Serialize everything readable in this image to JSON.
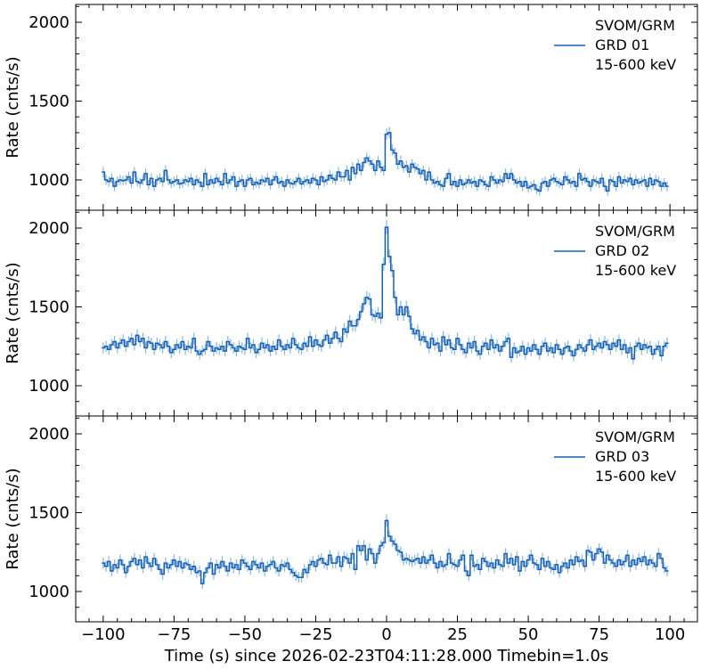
{
  "chart_data": {
    "type": "line",
    "style": "step-histogram-with-errorbars",
    "xlabel": "Time (s) since 2026-02-23T04:11:28.000 Timebin=1.0s",
    "ylabel": "Rate (cnts/s)",
    "xlim": [
      -109.7,
      109.7
    ],
    "ylim": [
      808,
      2113
    ],
    "xticks": [
      -100,
      -75,
      -50,
      -25,
      0,
      25,
      50,
      75,
      100
    ],
    "xtick_labels": [
      "−100",
      "−75",
      "−50",
      "−25",
      "0",
      "25",
      "50",
      "75",
      "100"
    ],
    "yticks": [
      1000,
      1500,
      2000
    ],
    "ytick_labels": [
      "1000",
      "1500",
      "2000"
    ],
    "x_start": -100,
    "bin_width": 1.0,
    "line_color": "#1660b0",
    "errorbar_color": "#8ab6e4",
    "legend_placement": "top-right",
    "panels": [
      {
        "legend": [
          "SVOM/GRM",
          "GRD 01",
          "15-600 keV"
        ],
        "values": [
          1050,
          1000,
          990,
          1010,
          960,
          990,
          1000,
          995,
          1000,
          1020,
          980,
          1050,
          990,
          980,
          1000,
          1040,
          970,
          1010,
          960,
          1000,
          1010,
          990,
          1060,
          1000,
          980,
          990,
          1000,
          975,
          980,
          1000,
          990,
          1010,
          970,
          1000,
          985,
          960,
          1040,
          970,
          1000,
          980,
          1010,
          990,
          970,
          1040,
          980,
          1000,
          1020,
          960,
          990,
          1000,
          960,
          1000,
          1010,
          970,
          985,
          975,
          1000,
          990,
          1010,
          970,
          1000,
          1020,
          980,
          990,
          960,
          1000,
          980,
          975,
          990,
          1010,
          975,
          990,
          1000,
          980,
          1010,
          1000,
          970,
          1020,
          990,
          1000,
          1030,
          1010,
          1000,
          1050,
          1020,
          1020,
          1060,
          1000,
          1080,
          1040,
          1100,
          1060,
          1110,
          1140,
          1120,
          1100,
          1060,
          1120,
          1080,
          1060,
          1290,
          1300,
          1190,
          1170,
          1100,
          1120,
          1080,
          1090,
          1050,
          1100,
          1080,
          1070,
          1040,
          1060,
          1000,
          1050,
          1000,
          980,
          990,
          970,
          960,
          1010,
          1040,
          970,
          990,
          960,
          1000,
          970,
          980,
          1000,
          980,
          990,
          960,
          1000,
          990,
          970,
          960,
          1020,
          1000,
          980,
          1000,
          990,
          1040,
          1010,
          1040,
          1000,
          980,
          990,
          960,
          990,
          950,
          960,
          970,
          940,
          930,
          980,
          990,
          960,
          1000,
          1010,
          990,
          980,
          970,
          1020,
          1000,
          980,
          990,
          960,
          1040,
          1000,
          1010,
          990,
          960,
          1000,
          990,
          980,
          1010,
          960,
          930,
          1000,
          990,
          960,
          1020,
          980,
          1000,
          990,
          1010,
          970,
          1000,
          980,
          990,
          1000,
          960,
          1010,
          970,
          1000,
          990,
          960,
          980,
          960
        ]
      },
      {
        "legend": [
          "SVOM/GRM",
          "GRD 02",
          "15-600 keV"
        ],
        "values": [
          1240,
          1250,
          1230,
          1260,
          1280,
          1240,
          1270,
          1290,
          1250,
          1280,
          1300,
          1260,
          1320,
          1280,
          1300,
          1240,
          1280,
          1270,
          1230,
          1270,
          1260,
          1240,
          1280,
          1250,
          1210,
          1230,
          1260,
          1240,
          1280,
          1230,
          1250,
          1240,
          1300,
          1220,
          1200,
          1220,
          1230,
          1280,
          1250,
          1220,
          1240,
          1230,
          1250,
          1220,
          1280,
          1260,
          1240,
          1220,
          1250,
          1240,
          1230,
          1300,
          1240,
          1260,
          1210,
          1230,
          1270,
          1240,
          1260,
          1220,
          1250,
          1230,
          1290,
          1250,
          1230,
          1260,
          1240,
          1300,
          1260,
          1240,
          1230,
          1270,
          1250,
          1310,
          1250,
          1290,
          1260,
          1250,
          1290,
          1320,
          1270,
          1300,
          1340,
          1300,
          1280,
          1360,
          1340,
          1410,
          1380,
          1380,
          1420,
          1470,
          1520,
          1560,
          1550,
          1450,
          1440,
          1460,
          1430,
          1770,
          2005,
          1820,
          1730,
          1560,
          1450,
          1500,
          1450,
          1500,
          1440,
          1360,
          1330,
          1350,
          1290,
          1310,
          1280,
          1240,
          1300,
          1260,
          1270,
          1220,
          1310,
          1260,
          1290,
          1240,
          1230,
          1300,
          1260,
          1230,
          1210,
          1270,
          1240,
          1280,
          1220,
          1200,
          1250,
          1270,
          1230,
          1290,
          1240,
          1260,
          1220,
          1250,
          1280,
          1300,
          1180,
          1240,
          1210,
          1220,
          1250,
          1200,
          1240,
          1220,
          1260,
          1230,
          1200,
          1250,
          1270,
          1220,
          1240,
          1210,
          1260,
          1230,
          1200,
          1240,
          1250,
          1220,
          1190,
          1230,
          1260,
          1240,
          1220,
          1260,
          1290,
          1230,
          1250,
          1270,
          1240,
          1280,
          1260,
          1230,
          1270,
          1250,
          1290,
          1230,
          1260,
          1210,
          1240,
          1170,
          1250,
          1270,
          1230,
          1260,
          1240,
          1250,
          1200,
          1230,
          1250,
          1190,
          1250,
          1270
        ]
      },
      {
        "legend": [
          "SVOM/GRM",
          "GRD 03",
          "15-600 keV"
        ],
        "values": [
          1180,
          1160,
          1190,
          1130,
          1170,
          1150,
          1200,
          1170,
          1120,
          1160,
          1190,
          1210,
          1170,
          1200,
          1150,
          1220,
          1180,
          1160,
          1210,
          1170,
          1140,
          1110,
          1180,
          1150,
          1170,
          1200,
          1160,
          1190,
          1150,
          1180,
          1170,
          1140,
          1160,
          1120,
          1130,
          1050,
          1120,
          1150,
          1180,
          1110,
          1170,
          1150,
          1190,
          1160,
          1130,
          1180,
          1150,
          1170,
          1140,
          1200,
          1180,
          1160,
          1140,
          1190,
          1170,
          1150,
          1180,
          1130,
          1160,
          1170,
          1190,
          1150,
          1130,
          1170,
          1160,
          1180,
          1140,
          1120,
          1100,
          1090,
          1090,
          1140,
          1120,
          1170,
          1190,
          1160,
          1200,
          1210,
          1180,
          1170,
          1230,
          1180,
          1180,
          1220,
          1160,
          1220,
          1210,
          1180,
          1240,
          1140,
          1290,
          1260,
          1290,
          1200,
          1270,
          1240,
          1180,
          1240,
          1290,
          1310,
          1450,
          1350,
          1320,
          1300,
          1260,
          1250,
          1200,
          1210,
          1200,
          1190,
          1200,
          1210,
          1180,
          1220,
          1180,
          1200,
          1230,
          1180,
          1150,
          1190,
          1160,
          1170,
          1240,
          1180,
          1170,
          1160,
          1200,
          1230,
          1130,
          1100,
          1230,
          1160,
          1170,
          1140,
          1210,
          1190,
          1160,
          1180,
          1150,
          1200,
          1170,
          1160,
          1240,
          1180,
          1210,
          1170,
          1220,
          1130,
          1190,
          1160,
          1200,
          1230,
          1180,
          1170,
          1140,
          1210,
          1160,
          1190,
          1150,
          1140,
          1170,
          1120,
          1160,
          1180,
          1150,
          1200,
          1170,
          1220,
          1190,
          1200,
          1160,
          1260,
          1250,
          1200,
          1240,
          1270,
          1250,
          1180,
          1230,
          1200,
          1180,
          1160,
          1200,
          1170,
          1190,
          1230,
          1160,
          1200,
          1170,
          1210,
          1190,
          1220,
          1170,
          1200,
          1180,
          1160,
          1240,
          1210,
          1150,
          1130
        ]
      }
    ]
  }
}
